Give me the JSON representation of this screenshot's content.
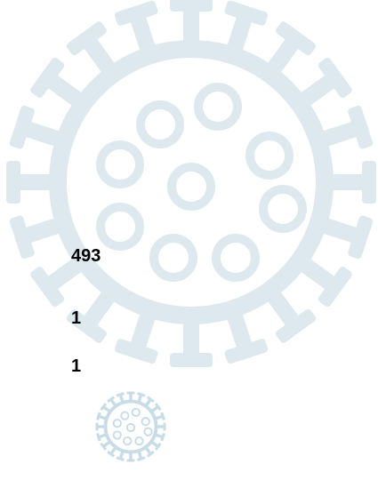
{
  "items": [
    493,
    1,
    1
  ]
}
